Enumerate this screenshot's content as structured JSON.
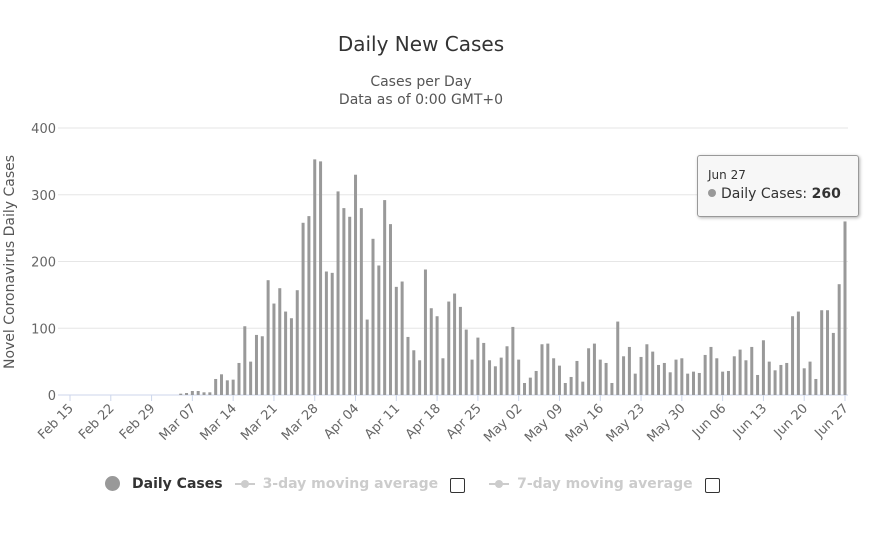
{
  "chart_data": {
    "type": "bar",
    "title": "Daily New Cases",
    "subtitle_lines": [
      "Cases per Day",
      "Data as of 0:00 GMT+0"
    ],
    "ylabel": "Novel Coronavirus Daily Cases",
    "xlabel": "",
    "ylim": [
      0,
      400
    ],
    "yticks": [
      0,
      100,
      200,
      300,
      400
    ],
    "grid": true,
    "start_date": "2020-02-15",
    "end_date": "2020-06-27",
    "xtick_labels": [
      "Feb 15",
      "Feb 22",
      "Feb 29",
      "Mar 07",
      "Mar 14",
      "Mar 21",
      "Mar 28",
      "Apr 04",
      "Apr 11",
      "Apr 18",
      "Apr 25",
      "May 02",
      "May 09",
      "May 16",
      "May 23",
      "May 30",
      "Jun 06",
      "Jun 13",
      "Jun 20",
      "Jun 27"
    ],
    "series": [
      {
        "name": "Daily Cases",
        "color": "#999999",
        "values": [
          0,
          0,
          0,
          0,
          0,
          0,
          0,
          0,
          0,
          0,
          0,
          0,
          0,
          0,
          0,
          0,
          0,
          0,
          0,
          2,
          3,
          6,
          6,
          4,
          4,
          24,
          31,
          22,
          23,
          48,
          103,
          50,
          90,
          88,
          172,
          137,
          160,
          125,
          115,
          157,
          258,
          268,
          353,
          350,
          185,
          183,
          305,
          280,
          267,
          330,
          280,
          113,
          234,
          194,
          292,
          256,
          162,
          170,
          87,
          67,
          52,
          188,
          130,
          118,
          55,
          140,
          152,
          132,
          98,
          53,
          86,
          78,
          52,
          43,
          56,
          73,
          102,
          53,
          18,
          26,
          36,
          76,
          77,
          55,
          44,
          18,
          27,
          51,
          20,
          70,
          77,
          53,
          48,
          18,
          110,
          58,
          72,
          32,
          57,
          76,
          65,
          45,
          48,
          34,
          53,
          55,
          32,
          35,
          33,
          60,
          72,
          55,
          35,
          36,
          58,
          68,
          52,
          72,
          30,
          82,
          50,
          37,
          45,
          48,
          118,
          125,
          40,
          50,
          24,
          127,
          127,
          93,
          166,
          260
        ]
      }
    ],
    "legend": {
      "placement": "bottom",
      "items": [
        {
          "label": "Daily Cases",
          "enabled": true
        },
        {
          "label": "3-day moving average",
          "enabled": false
        },
        {
          "label": "7-day moving average",
          "enabled": false
        }
      ]
    },
    "tooltip": {
      "date": "Jun 27",
      "series_label": "Daily Cases: ",
      "value": "260"
    }
  }
}
